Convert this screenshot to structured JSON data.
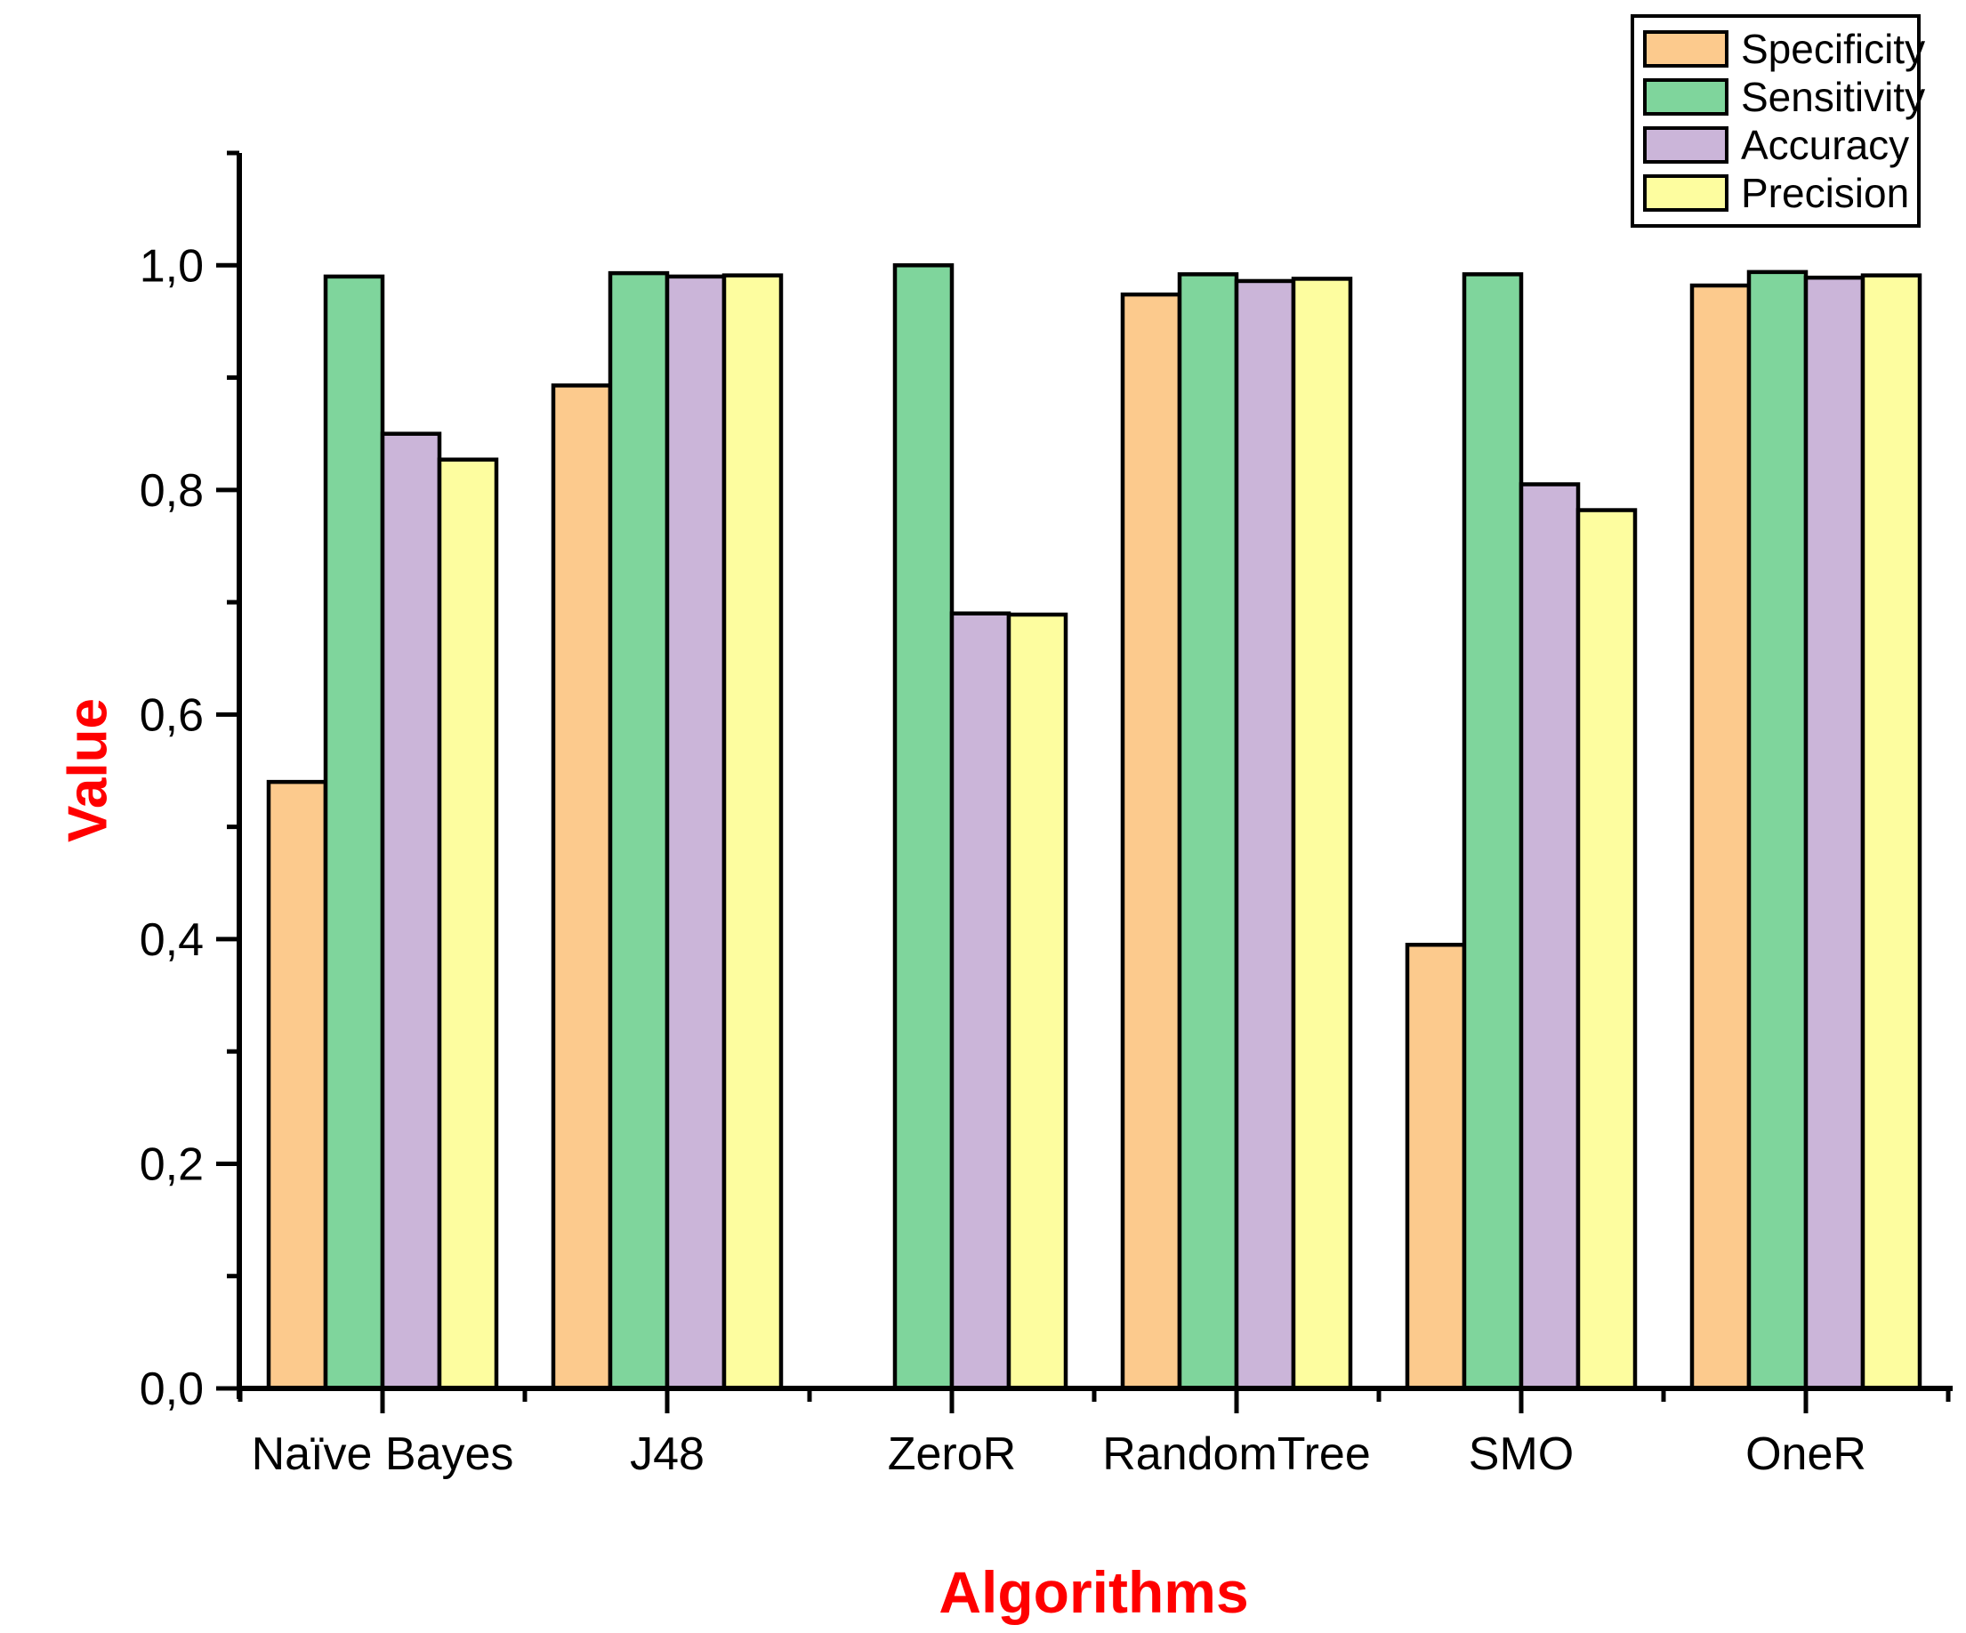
{
  "figure": {
    "background": "#FFFFFF",
    "axis_color": "#000000",
    "axis_title_color": "#FF0000",
    "bar_border_color": "#000000"
  },
  "chart_data": {
    "type": "bar",
    "title": "",
    "xlabel": "Algorithms",
    "ylabel": "Value",
    "categories": [
      "Naïve Bayes",
      "J48",
      "ZeroR",
      "RandomTree",
      "SMO",
      "OneR"
    ],
    "series": [
      {
        "name": "Specificity",
        "color": "#FCCA8D",
        "values": [
          0.54,
          0.893,
          0,
          0.974,
          0.395,
          0.982
        ]
      },
      {
        "name": "Sensitivity",
        "color": "#7FD59C",
        "values": [
          0.99,
          0.993,
          1.0,
          0.992,
          0.992,
          0.994
        ]
      },
      {
        "name": "Accuracy",
        "color": "#CBB5D9",
        "values": [
          0.85,
          0.99,
          0.69,
          0.986,
          0.805,
          0.989
        ]
      },
      {
        "name": "Precision",
        "color": "#FDFD9F",
        "values": [
          0.827,
          0.991,
          0.689,
          0.988,
          0.782,
          0.991
        ]
      }
    ],
    "ylim": [
      0,
      1.1
    ],
    "y_major_tick_labels": [
      "0,0",
      "0,2",
      "0,4",
      "0,6",
      "0,8",
      "1,0"
    ],
    "y_major_step": 0.2,
    "y_minor_step": 0.1,
    "decimal_separator": ",",
    "grid": false,
    "legend_position": "top-right",
    "legend_entries": [
      "Specificity",
      "Sensitivity",
      "Accuracy",
      "Precision"
    ]
  }
}
